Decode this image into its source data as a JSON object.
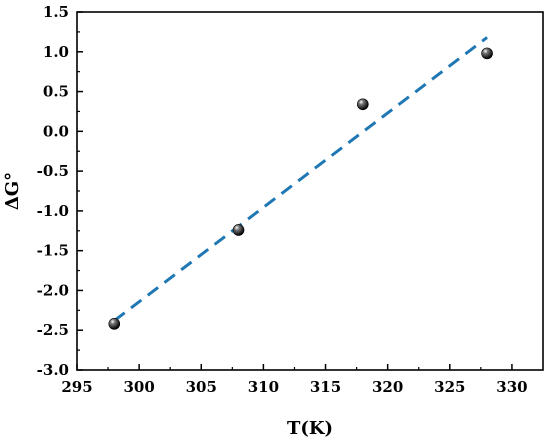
{
  "chart_data": {
    "type": "scatter",
    "xlabel": "T(K)",
    "ylabel": "ΔG°",
    "xlim": [
      295,
      332.5
    ],
    "ylim": [
      -3.0,
      1.5
    ],
    "x_ticks": [
      "295",
      "300",
      "305",
      "310",
      "315",
      "320",
      "325",
      "330"
    ],
    "y_ticks": [
      "1.5",
      "1.0",
      "0.5",
      "0.0",
      "-0.5",
      "-1.0",
      "-1.5",
      "-2.0",
      "-2.5",
      "-3.0"
    ],
    "grid": false,
    "legend": "none",
    "series": [
      {
        "type": "scatter",
        "x": [
          298,
          308,
          318,
          328
        ],
        "y": [
          -2.42,
          -1.24,
          0.34,
          0.98
        ],
        "color": "#000000"
      },
      {
        "type": "line",
        "style": "dashed",
        "x": [
          298,
          328
        ],
        "y": [
          -2.38,
          1.18
        ],
        "color": "#1f77b4"
      }
    ]
  }
}
